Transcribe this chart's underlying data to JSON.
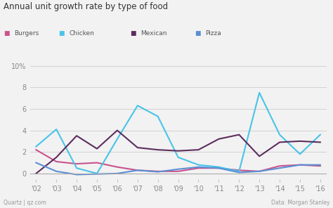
{
  "title": "Annual unit growth rate by type of food",
  "years": [
    2002,
    2003,
    2004,
    2005,
    2006,
    2007,
    2008,
    2009,
    2010,
    2011,
    2012,
    2013,
    2014,
    2015,
    2016
  ],
  "series": {
    "Burgers": [
      2.2,
      1.1,
      0.9,
      1.0,
      0.6,
      0.3,
      0.2,
      0.2,
      0.5,
      0.5,
      0.3,
      0.2,
      0.7,
      0.8,
      0.7
    ],
    "Chicken": [
      2.5,
      4.1,
      0.5,
      0.0,
      3.2,
      6.3,
      5.3,
      1.5,
      0.8,
      0.6,
      0.2,
      7.5,
      3.6,
      1.8,
      3.6
    ],
    "Mexican": [
      0.0,
      1.5,
      3.5,
      2.3,
      4.0,
      2.4,
      2.2,
      2.1,
      2.2,
      3.2,
      3.6,
      1.6,
      2.9,
      3.0,
      2.9
    ],
    "Pizza": [
      1.0,
      0.2,
      -0.1,
      -0.05,
      0.0,
      0.3,
      0.15,
      0.4,
      0.6,
      0.5,
      0.1,
      0.2,
      0.5,
      0.8,
      0.8
    ]
  },
  "colors": {
    "Burgers": "#c9538c",
    "Chicken": "#48c4e8",
    "Mexican": "#5c2d5e",
    "Pizza": "#5b8fd4"
  },
  "ylim": [
    -0.5,
    10.5
  ],
  "yticks": [
    0,
    2,
    4,
    6,
    8,
    10
  ],
  "ytick_labels": [
    "0",
    "2",
    "4",
    "6",
    "8",
    "10%"
  ],
  "bg_color": "#f2f2f2",
  "source_left": "Quartz | qz.com",
  "source_right": "Data: Morgan Stanley",
  "legend_order": [
    "Burgers",
    "Chicken",
    "Mexican",
    "Pizza"
  ]
}
